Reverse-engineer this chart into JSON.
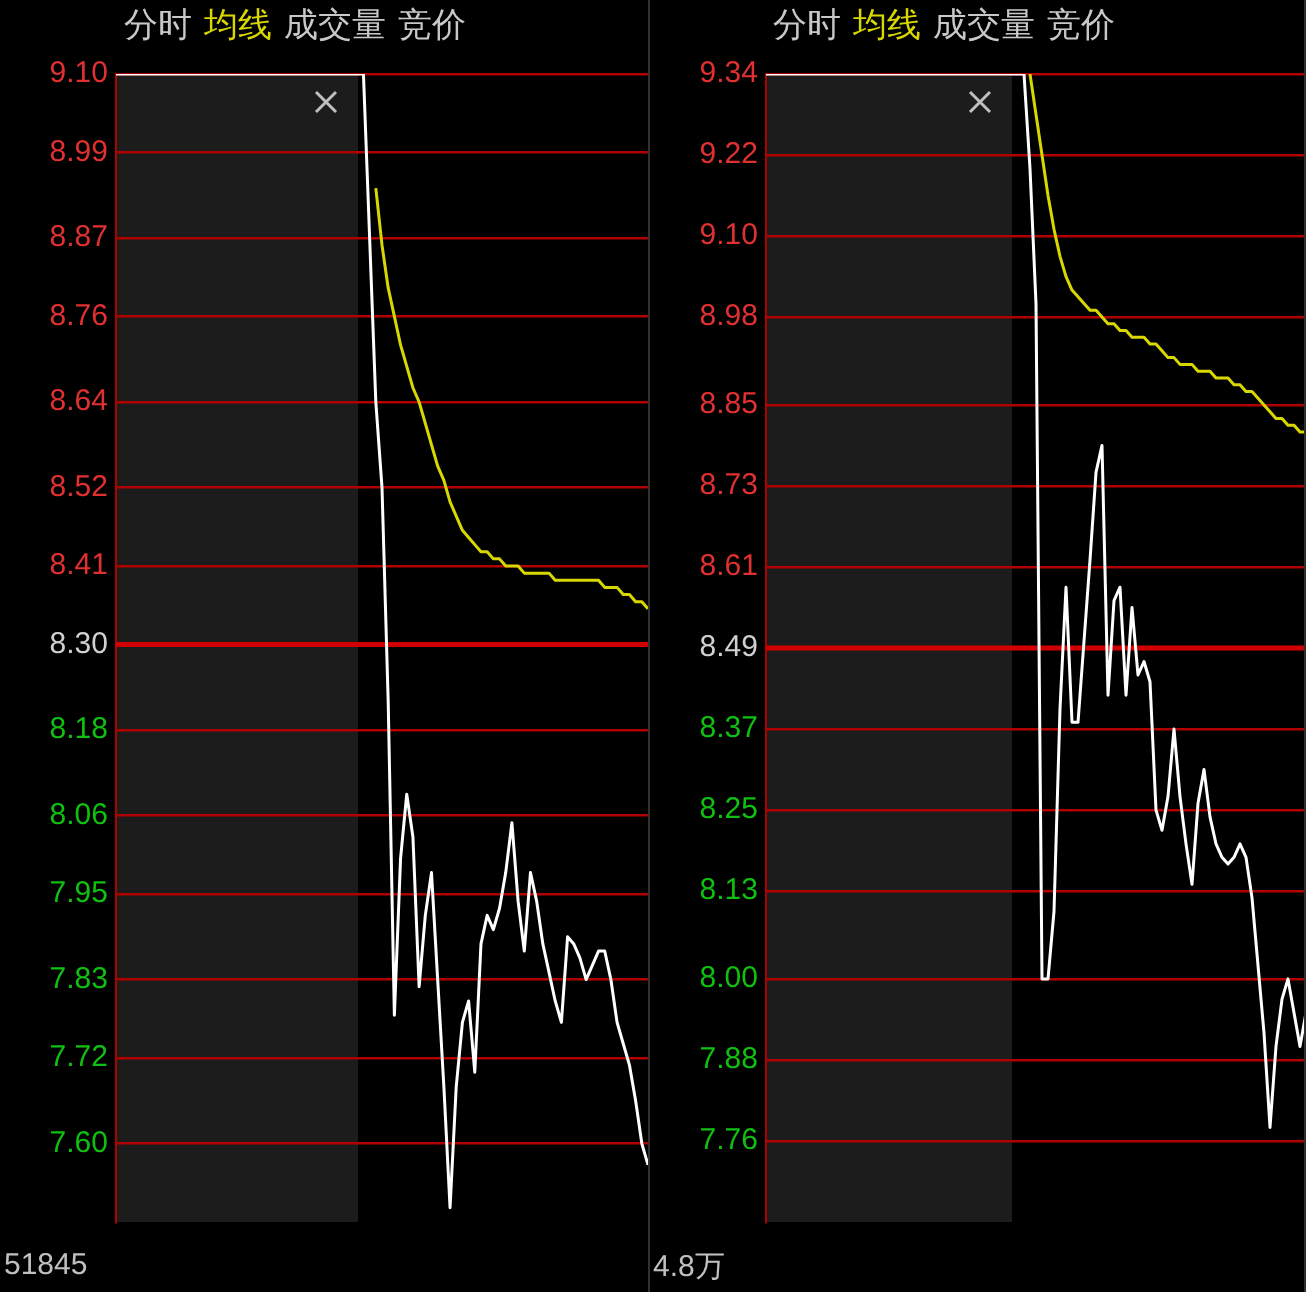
{
  "chart_data": [
    {
      "type": "line",
      "categories": [
        null,
        null,
        null,
        null,
        null,
        null,
        null,
        null,
        null,
        null,
        null,
        null,
        null,
        null,
        null,
        null,
        null,
        null,
        null,
        null,
        null,
        null,
        null,
        null,
        null,
        null,
        null,
        null,
        null,
        null,
        null,
        null,
        null,
        null,
        null,
        null,
        null,
        null,
        null,
        null,
        null,
        null,
        null,
        null,
        null,
        null,
        null,
        null,
        null,
        null,
        null,
        null,
        null,
        null,
        null,
        null,
        null,
        null,
        null,
        null,
        null,
        null,
        null,
        null,
        null,
        null,
        null,
        null,
        null,
        null,
        null,
        null,
        null,
        null,
        null,
        null,
        null,
        null,
        null,
        null,
        null,
        null,
        null,
        null,
        null,
        null,
        null
      ],
      "series": [
        {
          "name": "分时",
          "color": "#ffffff",
          "values": [
            9.1,
            9.1,
            9.1,
            9.1,
            9.1,
            9.1,
            9.1,
            9.1,
            9.1,
            9.1,
            9.1,
            9.1,
            9.1,
            9.1,
            9.1,
            9.1,
            9.1,
            9.1,
            9.1,
            9.1,
            9.1,
            9.1,
            9.1,
            9.1,
            9.1,
            9.1,
            9.1,
            9.1,
            9.1,
            9.1,
            9.1,
            9.1,
            9.1,
            9.1,
            9.1,
            9.1,
            9.1,
            9.1,
            9.1,
            9.1,
            9.1,
            8.87,
            8.64,
            8.52,
            8.22,
            7.78,
            8.0,
            8.09,
            8.03,
            7.82,
            7.92,
            7.98,
            7.83,
            7.68,
            7.51,
            7.68,
            7.77,
            7.8,
            7.7,
            7.88,
            7.92,
            7.9,
            7.93,
            7.98,
            8.05,
            7.94,
            7.87,
            7.98,
            7.94,
            7.88,
            7.84,
            7.8,
            7.77,
            7.89,
            7.88,
            7.86,
            7.83,
            7.85,
            7.87,
            7.87,
            7.83,
            7.77,
            7.74,
            7.71,
            7.66,
            7.6,
            7.57
          ]
        },
        {
          "name": "均线",
          "color": "#d8d800",
          "values": [
            null,
            null,
            null,
            null,
            null,
            null,
            null,
            null,
            null,
            null,
            null,
            null,
            null,
            null,
            null,
            null,
            null,
            null,
            null,
            null,
            null,
            null,
            null,
            null,
            null,
            null,
            null,
            null,
            null,
            null,
            null,
            null,
            null,
            null,
            null,
            null,
            null,
            null,
            null,
            null,
            null,
            null,
            8.94,
            8.86,
            8.8,
            8.76,
            8.72,
            8.69,
            8.66,
            8.64,
            8.61,
            8.58,
            8.55,
            8.53,
            8.5,
            8.48,
            8.46,
            8.45,
            8.44,
            8.43,
            8.43,
            8.42,
            8.42,
            8.41,
            8.41,
            8.41,
            8.4,
            8.4,
            8.4,
            8.4,
            8.4,
            8.39,
            8.39,
            8.39,
            8.39,
            8.39,
            8.39,
            8.39,
            8.39,
            8.38,
            8.38,
            8.38,
            8.37,
            8.37,
            8.36,
            8.36,
            8.35
          ]
        }
      ],
      "ylim": [
        7.49,
        9.1
      ],
      "yticks": [
        {
          "value": 9.1,
          "label": "9.10"
        },
        8.99,
        8.87,
        8.76,
        8.64,
        8.52,
        8.41,
        {
          "value": 8.3,
          "label": "8.30"
        },
        8.18,
        8.06,
        7.95,
        7.83,
        7.72,
        {
          "value": 7.6,
          "label": "7.60"
        }
      ],
      "tick_labels": "y",
      "grid": "y",
      "legend": "top left",
      "ref_lines": [
        {
          "axis": "y",
          "value": 8.3,
          "color": "#d00000"
        }
      ],
      "annotations": [
        "成交量",
        "竞价",
        "51845"
      ]
    },
    {
      "type": "line",
      "categories": [
        null,
        null,
        null,
        null,
        null,
        null,
        null,
        null,
        null,
        null,
        null,
        null,
        null,
        null,
        null,
        null,
        null,
        null,
        null,
        null,
        null,
        null,
        null,
        null,
        null,
        null,
        null,
        null,
        null,
        null,
        null,
        null,
        null,
        null,
        null,
        null,
        null,
        null,
        null,
        null,
        null,
        null,
        null,
        null,
        null,
        null,
        null,
        null,
        null,
        null,
        null,
        null,
        null,
        null,
        null,
        null,
        null,
        null,
        null,
        null,
        null,
        null,
        null,
        null,
        null,
        null,
        null,
        null,
        null,
        null,
        null,
        null,
        null,
        null,
        null,
        null,
        null,
        null,
        null,
        null,
        null,
        null,
        null,
        null,
        null,
        null,
        null,
        null,
        null,
        null,
        null
      ],
      "series": [
        {
          "name": "分时",
          "color": "#ffffff",
          "values": [
            9.34,
            9.34,
            9.34,
            9.34,
            9.34,
            9.34,
            9.34,
            9.34,
            9.34,
            9.34,
            9.34,
            9.34,
            9.34,
            9.34,
            9.34,
            9.34,
            9.34,
            9.34,
            9.34,
            9.34,
            9.34,
            9.34,
            9.34,
            9.34,
            9.34,
            9.34,
            9.34,
            9.34,
            9.34,
            9.34,
            9.34,
            9.34,
            9.34,
            9.34,
            9.34,
            9.34,
            9.34,
            9.34,
            9.34,
            9.34,
            9.34,
            9.34,
            9.34,
            9.34,
            9.2,
            9.0,
            8.0,
            8.0,
            8.1,
            8.4,
            8.58,
            8.38,
            8.38,
            8.5,
            8.62,
            8.75,
            8.79,
            8.42,
            8.56,
            8.58,
            8.42,
            8.55,
            8.45,
            8.47,
            8.44,
            8.25,
            8.22,
            8.27,
            8.37,
            8.27,
            8.2,
            8.14,
            8.26,
            8.31,
            8.24,
            8.2,
            8.18,
            8.17,
            8.18,
            8.2,
            8.18,
            8.12,
            8.02,
            7.92,
            7.78,
            7.9,
            7.97,
            8.0,
            7.95,
            7.9,
            7.95
          ]
        },
        {
          "name": "均线",
          "color": "#d8d800",
          "values": [
            null,
            null,
            null,
            null,
            null,
            null,
            null,
            null,
            null,
            null,
            null,
            null,
            null,
            null,
            null,
            null,
            null,
            null,
            null,
            null,
            null,
            null,
            null,
            null,
            null,
            null,
            null,
            null,
            null,
            null,
            null,
            null,
            null,
            null,
            null,
            null,
            null,
            null,
            null,
            null,
            null,
            null,
            null,
            null,
            9.34,
            9.28,
            9.22,
            9.16,
            9.11,
            9.07,
            9.04,
            9.02,
            9.01,
            9.0,
            8.99,
            8.99,
            8.98,
            8.97,
            8.97,
            8.96,
            8.96,
            8.95,
            8.95,
            8.95,
            8.94,
            8.94,
            8.93,
            8.92,
            8.92,
            8.91,
            8.91,
            8.91,
            8.9,
            8.9,
            8.9,
            8.89,
            8.89,
            8.89,
            8.88,
            8.88,
            8.87,
            8.87,
            8.86,
            8.85,
            8.84,
            8.83,
            8.83,
            8.82,
            8.82,
            8.81,
            8.81
          ]
        }
      ],
      "ylim": [
        7.64,
        9.34
      ],
      "yticks": [
        9.34,
        9.22,
        {
          "value": 9.1,
          "label": "9.10"
        },
        8.98,
        8.85,
        8.73,
        8.61,
        8.49,
        8.37,
        8.25,
        8.13,
        {
          "value": 8.0,
          "label": "8.00"
        },
        7.88,
        7.76
      ],
      "tick_labels": "y",
      "grid": "y",
      "legend": "top left",
      "ref_lines": [
        {
          "axis": "y",
          "value": 8.49,
          "color": "#d00000"
        }
      ],
      "annotations": [
        "成交量",
        "竞价",
        "4.8万"
      ]
    }
  ]
}
